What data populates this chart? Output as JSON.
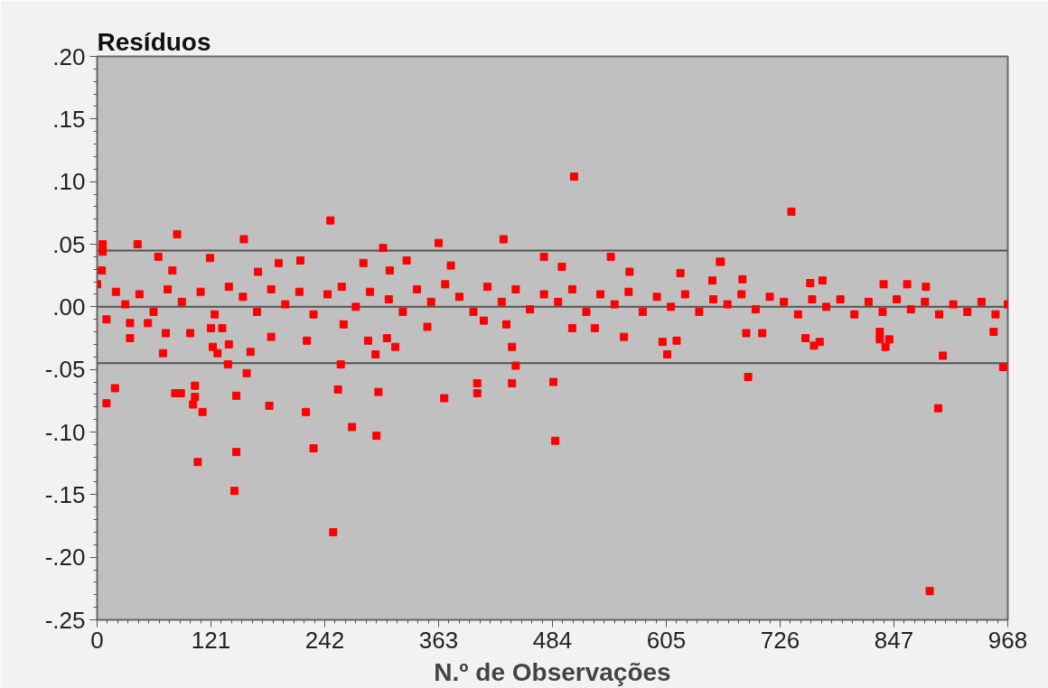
{
  "chart_data": {
    "type": "scatter",
    "ylabel": "Resíduos",
    "xlabel": "N.º de Observações",
    "xlim": [
      0,
      968
    ],
    "xticks": [
      0,
      121,
      242,
      363,
      484,
      605,
      726,
      847,
      968
    ],
    "ylim": [
      -0.25,
      0.2
    ],
    "yticks": [
      {
        "value": 0.2,
        "label": ".20"
      },
      {
        "value": 0.15,
        "label": ".15"
      },
      {
        "value": 0.1,
        "label": ".10"
      },
      {
        "value": 0.05,
        "label": ".05"
      },
      {
        "value": 0,
        "label": ".00"
      },
      {
        "value": -0.05,
        "label": "-.05"
      },
      {
        "value": -0.1,
        "label": "-.10"
      },
      {
        "value": -0.15,
        "label": "-.15"
      },
      {
        "value": -0.2,
        "label": "-.20"
      },
      {
        "value": -0.25,
        "label": "-.25"
      }
    ],
    "grid": false,
    "marker": "square",
    "ref_lines": [
      {
        "axis": "y",
        "value": 0.045,
        "label": null,
        "color": "#555555"
      },
      {
        "axis": "y",
        "value": 0,
        "label": null,
        "color": "#555555"
      },
      {
        "axis": "y",
        "value": -0.045,
        "label": null,
        "color": "#555555"
      }
    ],
    "series": [
      {
        "color": "#ff0000",
        "x": [
          6,
          6,
          43,
          85,
          156,
          248,
          304,
          65,
          120,
          216,
          329,
          283,
          193,
          5,
          80,
          171,
          311,
          35,
          35,
          54,
          73,
          70,
          99,
          121,
          133,
          123,
          128,
          140,
          163,
          139,
          159,
          185,
          223,
          259,
          262,
          288,
          296,
          308,
          317,
          19,
          10,
          83,
          89,
          104,
          104,
          102,
          112,
          107,
          148,
          148,
          146,
          183,
          222,
          230,
          256,
          251,
          271,
          297,
          299,
          507,
          363,
          432,
          475,
          546,
          376,
          494,
          566,
          620,
          662,
          351,
          411,
          435,
          505,
          529,
          560,
          601,
          616,
          606,
          441,
          445,
          441,
          404,
          404,
          369,
          485,
          487,
          738,
          663,
          654,
          686,
          758,
          771,
          836,
          861,
          881,
          690,
          707,
          753,
          762,
          768,
          832,
          832,
          842,
          838,
          899,
          953,
          963,
          692,
          894,
          885,
          0,
          10,
          20,
          30,
          45,
          60,
          75,
          90,
          110,
          125,
          140,
          155,
          170,
          185,
          200,
          215,
          230,
          245,
          260,
          275,
          290,
          310,
          325,
          340,
          355,
          370,
          385,
          400,
          415,
          430,
          445,
          460,
          475,
          490,
          505,
          520,
          535,
          550,
          565,
          580,
          595,
          610,
          625,
          640,
          655,
          670,
          685,
          700,
          715,
          730,
          745,
          760,
          775,
          790,
          805,
          820,
          835,
          850,
          865,
          880,
          895,
          910,
          925,
          940,
          955,
          968
        ],
        "values": [
          0.05,
          0.044,
          0.05,
          0.058,
          0.054,
          0.069,
          0.047,
          0.04,
          0.039,
          0.037,
          0.037,
          0.035,
          0.035,
          0.029,
          0.029,
          0.028,
          0.029,
          -0.013,
          -0.025,
          -0.013,
          -0.021,
          -0.037,
          -0.021,
          -0.017,
          -0.017,
          -0.032,
          -0.037,
          -0.03,
          -0.036,
          -0.046,
          -0.053,
          -0.024,
          -0.027,
          -0.046,
          -0.014,
          -0.027,
          -0.038,
          -0.025,
          -0.032,
          -0.065,
          -0.077,
          -0.069,
          -0.069,
          -0.063,
          -0.072,
          -0.078,
          -0.084,
          -0.124,
          -0.071,
          -0.116,
          -0.147,
          -0.079,
          -0.084,
          -0.113,
          -0.066,
          -0.18,
          -0.096,
          -0.103,
          -0.068,
          0.104,
          0.051,
          0.054,
          0.04,
          0.04,
          0.033,
          0.032,
          0.028,
          0.027,
          0.036,
          -0.016,
          -0.011,
          -0.014,
          -0.017,
          -0.017,
          -0.024,
          -0.028,
          -0.027,
          -0.038,
          -0.032,
          -0.047,
          -0.061,
          -0.061,
          -0.069,
          -0.073,
          -0.06,
          -0.107,
          0.076,
          0.036,
          0.021,
          0.022,
          0.019,
          0.021,
          0.018,
          0.018,
          0.016,
          -0.021,
          -0.021,
          -0.025,
          -0.031,
          -0.028,
          -0.02,
          -0.026,
          -0.026,
          -0.032,
          -0.039,
          -0.02,
          -0.048,
          -0.056,
          -0.081,
          -0.227,
          0.018,
          -0.01,
          0.012,
          0.002,
          0.01,
          -0.004,
          0.014,
          0.004,
          0.012,
          -0.006,
          0.016,
          0.008,
          -0.004,
          0.014,
          0.002,
          0.012,
          -0.006,
          0.01,
          0.016,
          0.0,
          0.012,
          0.006,
          -0.004,
          0.014,
          0.004,
          0.018,
          0.008,
          -0.004,
          0.016,
          0.004,
          0.014,
          -0.002,
          0.01,
          0.004,
          0.014,
          -0.004,
          0.01,
          0.002,
          0.012,
          -0.004,
          0.008,
          0.0,
          0.01,
          -0.004,
          0.006,
          0.002,
          0.01,
          -0.002,
          0.008,
          0.004,
          -0.006,
          0.006,
          0.0,
          0.006,
          -0.006,
          0.004,
          -0.004,
          0.006,
          -0.002,
          0.004,
          -0.006,
          0.002,
          -0.004,
          0.004,
          -0.006,
          0.002
        ]
      }
    ]
  }
}
